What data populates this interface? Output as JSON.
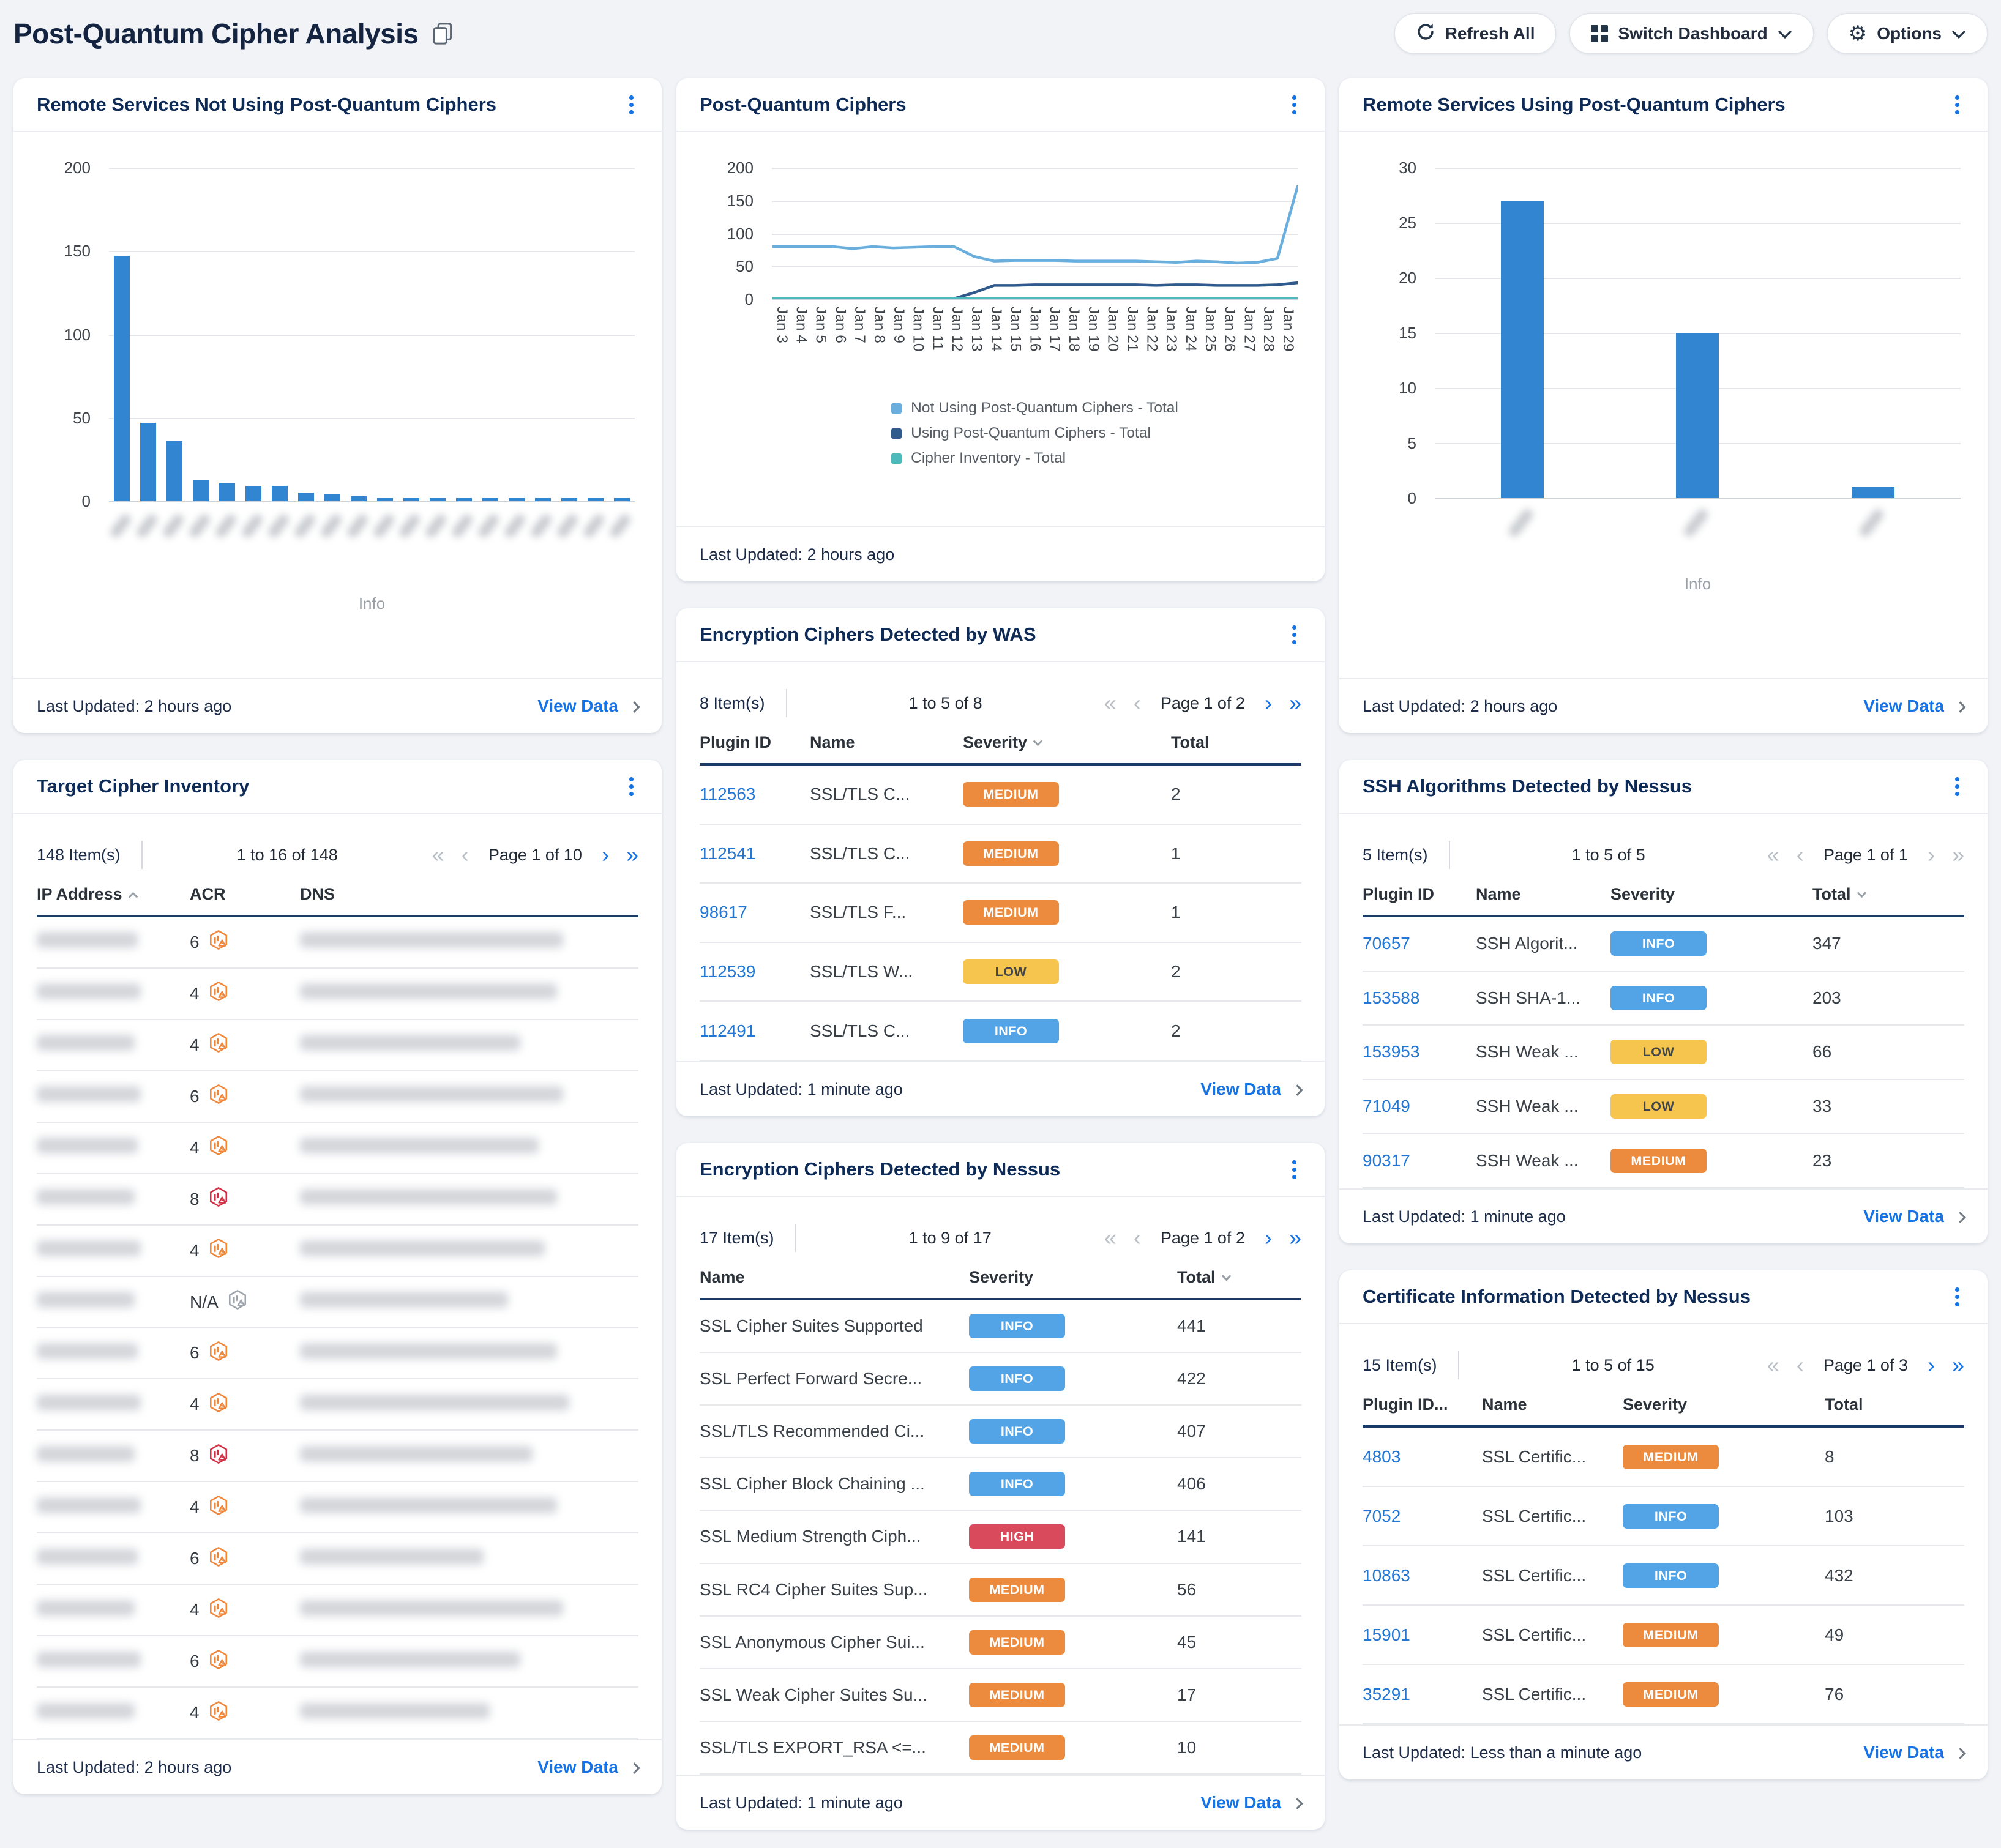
{
  "page": {
    "title": "Post-Quantum Cipher Analysis"
  },
  "toolbar": {
    "refresh_label": "Refresh All",
    "switch_label": "Switch Dashboard",
    "options_label": "Options"
  },
  "labels": {
    "view_data": "View Data"
  },
  "icons": {
    "first_page": "«",
    "prev_page": "‹",
    "next_page": "›",
    "last_page": "»"
  },
  "colors": {
    "accent_blue": "#1673e6",
    "bar_blue": "#3285d0",
    "severity_info": "#52a4e6",
    "severity_low": "#f6c54d",
    "severity_medium": "#ec8a3e",
    "severity_high": "#d94b5c",
    "acr_mid": "#f0863a",
    "acr_high": "#d22f45",
    "acr_na": "#9ea4ac"
  },
  "panels": {
    "not_using": {
      "title": "Remote Services Not Using Post-Quantum Ciphers",
      "last_updated": "Last Updated: 2 hours ago"
    },
    "pqc_trend": {
      "title": "Post-Quantum Ciphers",
      "last_updated": "Last Updated: 2 hours ago"
    },
    "using": {
      "title": "Remote Services Using Post-Quantum Ciphers",
      "last_updated": "Last Updated: 2 hours ago"
    },
    "inventory": {
      "title": "Target Cipher Inventory",
      "items": "148 Item(s)",
      "range": "1 to 16 of 148",
      "page": "Page 1 of 10",
      "columns": [
        "IP Address",
        "ACR",
        "DNS"
      ],
      "values_redacted": [
        "IP Address",
        "DNS"
      ],
      "rows": [
        {
          "acr": "6"
        },
        {
          "acr": "4"
        },
        {
          "acr": "4"
        },
        {
          "acr": "6"
        },
        {
          "acr": "4"
        },
        {
          "acr": "8"
        },
        {
          "acr": "4"
        },
        {
          "acr": "N/A"
        },
        {
          "acr": "6"
        },
        {
          "acr": "4"
        },
        {
          "acr": "8"
        },
        {
          "acr": "4"
        },
        {
          "acr": "6"
        },
        {
          "acr": "4"
        },
        {
          "acr": "6"
        },
        {
          "acr": "4"
        }
      ],
      "last_updated": "Last Updated: 2 hours ago"
    },
    "was": {
      "title": "Encryption Ciphers Detected by WAS",
      "items": "8 Item(s)",
      "range": "1 to 5 of 8",
      "page": "Page 1 of 2",
      "columns": [
        "Plugin ID",
        "Name",
        "Severity",
        "Total"
      ],
      "rows": [
        {
          "id": "112563",
          "name": "SSL/TLS C...",
          "severity": "MEDIUM",
          "total": "2"
        },
        {
          "id": "112541",
          "name": "SSL/TLS C...",
          "severity": "MEDIUM",
          "total": "1"
        },
        {
          "id": "98617",
          "name": "SSL/TLS F...",
          "severity": "MEDIUM",
          "total": "1"
        },
        {
          "id": "112539",
          "name": "SSL/TLS W...",
          "severity": "LOW",
          "total": "2"
        },
        {
          "id": "112491",
          "name": "SSL/TLS C...",
          "severity": "INFO",
          "total": "2"
        }
      ],
      "last_updated": "Last Updated: 1 minute ago"
    },
    "nessus_ciphers": {
      "title": "Encryption Ciphers Detected by Nessus",
      "items": "17 Item(s)",
      "range": "1 to 9 of 17",
      "page": "Page 1 of 2",
      "columns": [
        "Name",
        "Severity",
        "Total"
      ],
      "rows": [
        {
          "name": "SSL Cipher Suites Supported",
          "severity": "INFO",
          "total": "441"
        },
        {
          "name": "SSL Perfect Forward Secre...",
          "severity": "INFO",
          "total": "422"
        },
        {
          "name": "SSL/TLS Recommended Ci...",
          "severity": "INFO",
          "total": "407"
        },
        {
          "name": "SSL Cipher Block Chaining ...",
          "severity": "INFO",
          "total": "406"
        },
        {
          "name": "SSL Medium Strength Ciph...",
          "severity": "HIGH",
          "total": "141"
        },
        {
          "name": "SSL RC4 Cipher Suites Sup...",
          "severity": "MEDIUM",
          "total": "56"
        },
        {
          "name": "SSL Anonymous Cipher Sui...",
          "severity": "MEDIUM",
          "total": "45"
        },
        {
          "name": "SSL Weak Cipher Suites Su...",
          "severity": "MEDIUM",
          "total": "17"
        },
        {
          "name": "SSL/TLS EXPORT_RSA <=...",
          "severity": "MEDIUM",
          "total": "10"
        }
      ],
      "last_updated": "Last Updated: 1 minute ago"
    },
    "ssh": {
      "title": "SSH Algorithms Detected by Nessus",
      "items": "5 Item(s)",
      "range": "1 to 5 of 5",
      "page": "Page 1 of 1",
      "columns": [
        "Plugin ID",
        "Name",
        "Severity",
        "Total"
      ],
      "rows": [
        {
          "id": "70657",
          "name": "SSH Algorit...",
          "severity": "INFO",
          "total": "347"
        },
        {
          "id": "153588",
          "name": "SSH SHA-1...",
          "severity": "INFO",
          "total": "203"
        },
        {
          "id": "153953",
          "name": "SSH Weak ...",
          "severity": "LOW",
          "total": "66"
        },
        {
          "id": "71049",
          "name": "SSH Weak ...",
          "severity": "LOW",
          "total": "33"
        },
        {
          "id": "90317",
          "name": "SSH Weak ...",
          "severity": "MEDIUM",
          "total": "23"
        }
      ],
      "last_updated": "Last Updated: 1 minute ago"
    },
    "certs": {
      "title": "Certificate Information Detected by Nessus",
      "items": "15 Item(s)",
      "range": "1 to 5 of 15",
      "page": "Page 1 of 3",
      "columns": [
        "Plugin ID...",
        "Name",
        "Severity",
        "Total"
      ],
      "rows": [
        {
          "id": "4803",
          "name": "SSL Certific...",
          "severity": "MEDIUM",
          "total": "8"
        },
        {
          "id": "7052",
          "name": "SSL Certific...",
          "severity": "INFO",
          "total": "103"
        },
        {
          "id": "10863",
          "name": "SSL Certific...",
          "severity": "INFO",
          "total": "432"
        },
        {
          "id": "15901",
          "name": "SSL Certific...",
          "severity": "MEDIUM",
          "total": "49"
        },
        {
          "id": "35291",
          "name": "SSL Certific...",
          "severity": "MEDIUM",
          "total": "76"
        }
      ],
      "last_updated": "Last Updated: Less than a minute ago"
    }
  },
  "chart_data": [
    {
      "panel": "Remote Services Not Using Post-Quantum Ciphers",
      "type": "bar",
      "values": [
        147,
        47,
        36,
        13,
        11,
        9,
        9,
        5,
        4,
        3,
        2,
        2,
        2,
        2,
        2,
        2,
        2,
        2,
        2,
        2
      ],
      "categories_redacted": true,
      "xlabel": "Info",
      "ylabel": "",
      "ylim": [
        0,
        200
      ],
      "yticks": [
        0,
        50,
        100,
        150,
        200
      ],
      "bar_color": "#3285d0",
      "grid": true
    },
    {
      "panel": "Post-Quantum Ciphers",
      "type": "line",
      "x": [
        "Jan 3",
        "Jan 4",
        "Jan 5",
        "Jan 6",
        "Jan 7",
        "Jan 8",
        "Jan 9",
        "Jan 10",
        "Jan 11",
        "Jan 12",
        "Jan 13",
        "Jan 14",
        "Jan 15",
        "Jan 16",
        "Jan 17",
        "Jan 18",
        "Jan 19",
        "Jan 20",
        "Jan 21",
        "Jan 22",
        "Jan 23",
        "Jan 24",
        "Jan 25",
        "Jan 26",
        "Jan 27",
        "Jan 28",
        "Jan 29"
      ],
      "series": [
        {
          "name": "Not Using Post-Quantum Ciphers - Total",
          "color": "#6aaede",
          "values": [
            80,
            80,
            80,
            80,
            77,
            80,
            78,
            79,
            80,
            80,
            65,
            58,
            59,
            59,
            59,
            58,
            58,
            58,
            58,
            57,
            56,
            58,
            57,
            55,
            56,
            62,
            172
          ]
        },
        {
          "name": "Using Post-Quantum Ciphers - Total",
          "color": "#30598c",
          "values": [
            1,
            1,
            1,
            1,
            1,
            1,
            1,
            1,
            1,
            1,
            10,
            21,
            21,
            22,
            22,
            22,
            22,
            22,
            22,
            21,
            22,
            22,
            21,
            21,
            21,
            22,
            25
          ]
        },
        {
          "name": "Cipher Inventory - Total",
          "color": "#4cb9ba",
          "values": [
            1,
            1,
            1,
            1,
            1,
            1,
            1,
            1,
            1,
            1,
            1,
            1,
            1,
            1,
            1,
            1,
            1,
            1,
            1,
            1,
            1,
            1,
            1,
            1,
            1,
            1,
            1
          ]
        }
      ],
      "ylim": [
        0,
        200
      ],
      "yticks": [
        0,
        50,
        100,
        150,
        200
      ],
      "grid": true,
      "legend_position": "bottom"
    },
    {
      "panel": "Remote Services Using Post-Quantum Ciphers",
      "type": "bar",
      "values": [
        27,
        15,
        1
      ],
      "categories_redacted": true,
      "xlabel": "Info",
      "ylabel": "",
      "ylim": [
        0,
        30
      ],
      "yticks": [
        0,
        5,
        10,
        15,
        20,
        25,
        30
      ],
      "bar_color": "#3285d0",
      "grid": true
    }
  ]
}
